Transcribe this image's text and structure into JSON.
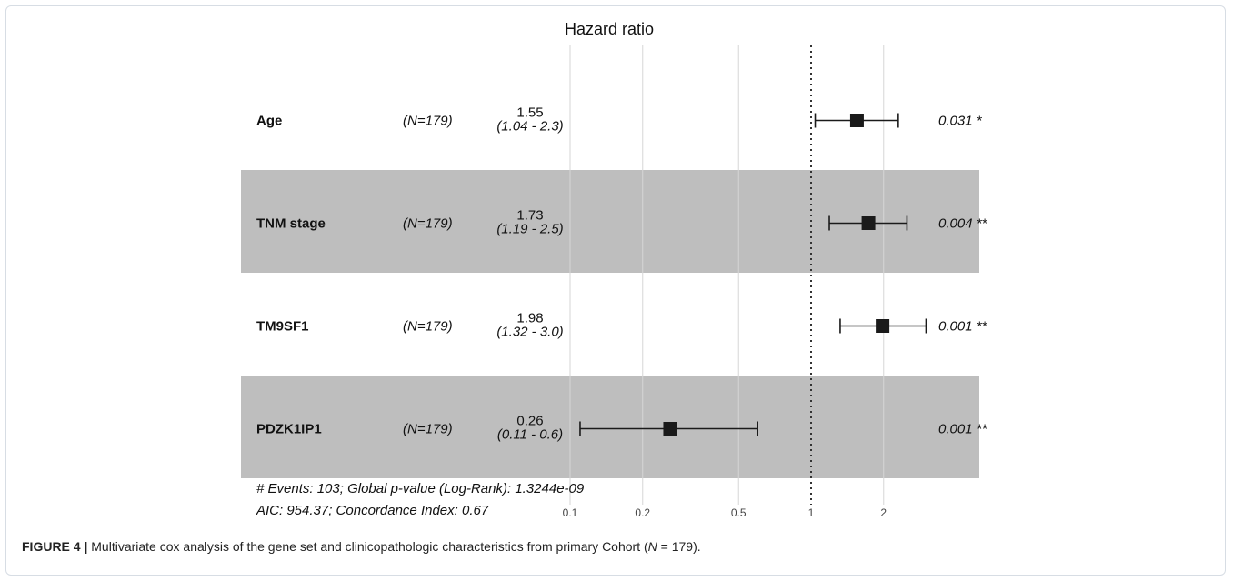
{
  "chart_data": {
    "type": "forest",
    "title": "Hazard ratio",
    "x_scale": "log",
    "x_ticks": [
      0.1,
      0.2,
      0.5,
      1,
      2
    ],
    "x_tick_labels": [
      "0.1",
      "0.2",
      "0.5",
      "1",
      "2"
    ],
    "xlim": [
      0.1,
      3.0
    ],
    "reference_line": 1,
    "rows": [
      {
        "name": "Age",
        "n_label": "(N=179)",
        "hr": 1.55,
        "hr_label": "1.55",
        "ci_low": 1.04,
        "ci_high": 2.3,
        "ci_label": "(1.04 - 2.3)",
        "p_label": "0.031",
        "sig": "*",
        "shaded": false
      },
      {
        "name": "TNM stage",
        "n_label": "(N=179)",
        "hr": 1.73,
        "hr_label": "1.73",
        "ci_low": 1.19,
        "ci_high": 2.5,
        "ci_label": "(1.19 - 2.5)",
        "p_label": "0.004",
        "sig": "**",
        "shaded": true
      },
      {
        "name": "TM9SF1",
        "n_label": "(N=179)",
        "hr": 1.98,
        "hr_label": "1.98",
        "ci_low": 1.32,
        "ci_high": 3.0,
        "ci_label": "(1.32 - 3.0)",
        "p_label": "0.001",
        "sig": "**",
        "shaded": false
      },
      {
        "name": "PDZK1IP1",
        "n_label": "(N=179)",
        "hr": 0.26,
        "hr_label": "0.26",
        "ci_low": 0.11,
        "ci_high": 0.6,
        "ci_label": "(0.11 - 0.6)",
        "p_label": "0.001",
        "sig": "**",
        "shaded": true
      }
    ],
    "footnote_lines": [
      "# Events: 103; Global p-value (Log-Rank): 1.3244e-09",
      "AIC: 954.37; Concordance Index: 0.67"
    ],
    "grid": true
  },
  "caption": {
    "label": "FIGURE 4 |",
    "text": "Multivariate cox analysis of the gene set and clinicopathologic characteristics from primary Cohort (",
    "n_symbol": "N",
    "text_end": " = 179)."
  },
  "colors": {
    "band": "#bebebe",
    "marker": "#1a1a1a",
    "grid": "#d6d6d6",
    "frame": "#d7dde4"
  }
}
